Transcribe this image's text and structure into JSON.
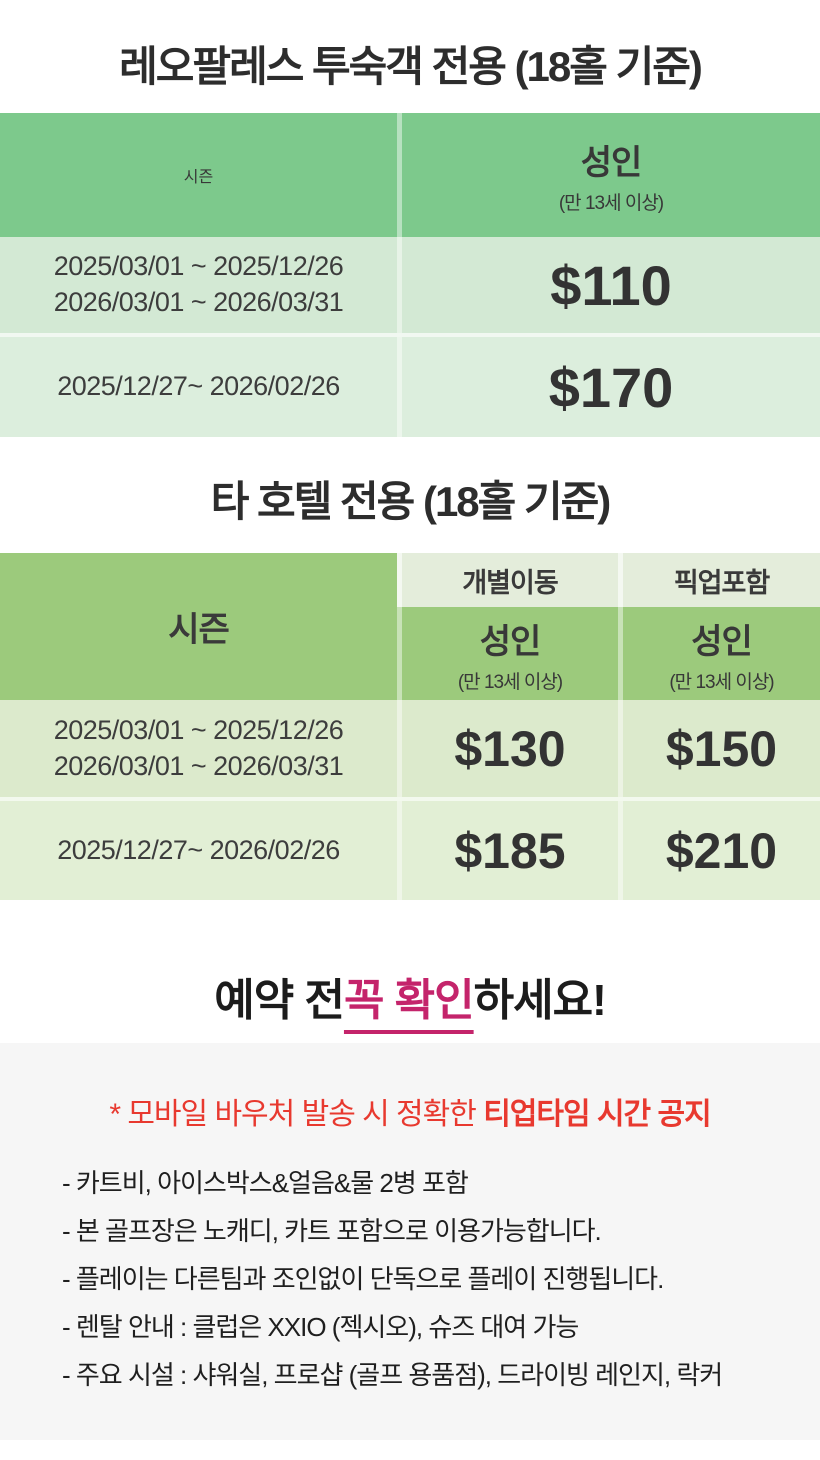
{
  "table1": {
    "title": "레오팔레스 투숙객 전용 (18홀 기준)",
    "header": {
      "season": "시즌",
      "adult": "성인",
      "adult_sub": "(만 13세 이상)"
    },
    "rows": [
      {
        "season_line1": "2025/03/01 ~ 2025/12/26",
        "season_line2": "2026/03/01 ~ 2026/03/31",
        "adult_price": "$110"
      },
      {
        "season_line1": "2025/12/27~ 2026/02/26",
        "adult_price": "$170"
      }
    ]
  },
  "table2": {
    "title": "타 호텔 전용 (18홀 기준)",
    "header": {
      "season": "시즌",
      "individual": "개별이동",
      "pickup": "픽업포함",
      "adult": "성인",
      "adult_sub": "(만 13세 이상)"
    },
    "rows": [
      {
        "season_line1": "2025/03/01 ~ 2025/12/26",
        "season_line2": "2026/03/01 ~ 2026/03/31",
        "individual_price": "$130",
        "pickup_price": "$150"
      },
      {
        "season_line1": "2025/12/27~ 2026/02/26",
        "individual_price": "$185",
        "pickup_price": "$210"
      }
    ]
  },
  "warning": {
    "prefix": "예약 전 ",
    "highlight": "꼭 확인",
    "suffix": "하세요!"
  },
  "notice": {
    "red_regular": "* 모바일 바우처 발송 시 정확한 ",
    "red_bold": "티업타임 시간 공지",
    "items": [
      "- 카트비, 아이스박스&얼음&물 2병 포함",
      "- 본 골프장은 노캐디, 카트 포함으로 이용가능합니다.",
      "- 플레이는 다른팀과 조인없이 단독으로 플레이 진행됩니다.",
      "- 렌탈 안내 : 클럽은 XXIO (젝시오), 슈즈 대여 가능",
      "- 주요 시설 : 샤워실, 프로샵 (골프 용품점), 드라이빙 레인지, 락커"
    ]
  },
  "colors": {
    "table1_header_bg": "#7DC98C",
    "table1_row1_bg": "#D3E9D4",
    "table1_row2_bg": "#DCEEDD",
    "table2_header_bg": "#9CCA7C",
    "table2_strip_bg": "#E4EDDB",
    "table2_row1_bg": "#DCEACC",
    "table2_row2_bg": "#E2EFD5",
    "warning_highlight": "#C4246B",
    "notice_red": "#E8392F",
    "notice_box_bg": "#F6F6F6"
  }
}
